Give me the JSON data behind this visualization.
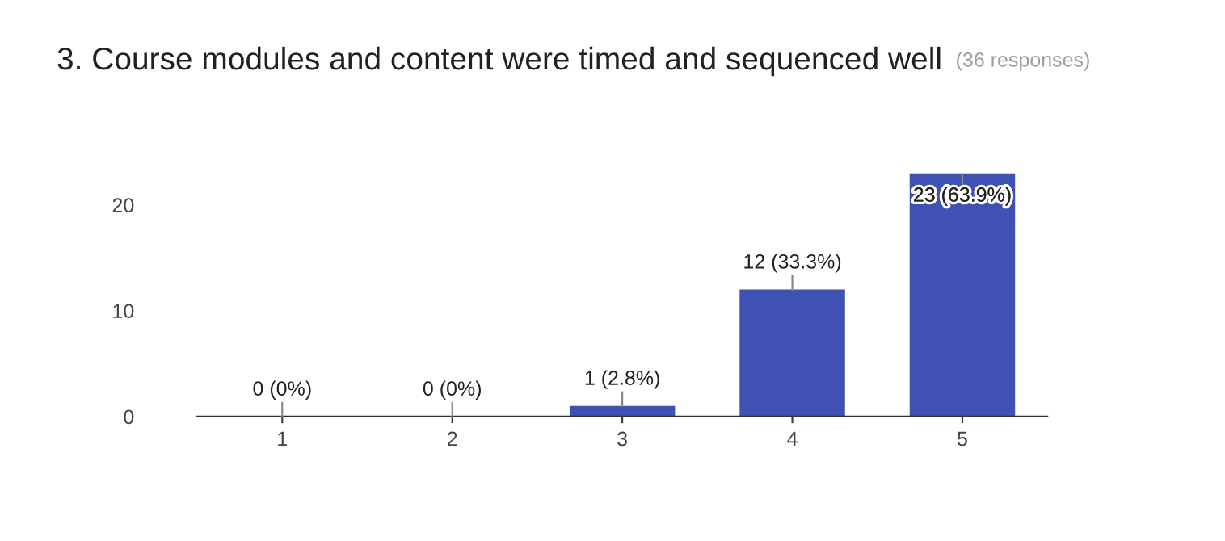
{
  "chart_data": {
    "type": "bar",
    "title": "3. Course modules and content were timed and sequenced well",
    "subtitle": "(36 responses)",
    "categories": [
      "1",
      "2",
      "3",
      "4",
      "5"
    ],
    "values": [
      0,
      0,
      1,
      12,
      23
    ],
    "color": "#3f51b5",
    "value_labels": [
      "0 (0%)",
      "0 (0%)",
      "1 (2.8%)",
      "12 (33.3%)",
      "23 (63.9%)"
    ],
    "ylim": [
      0,
      23
    ],
    "yticks": [
      0,
      10,
      20
    ],
    "grid": false,
    "legend": false
  }
}
